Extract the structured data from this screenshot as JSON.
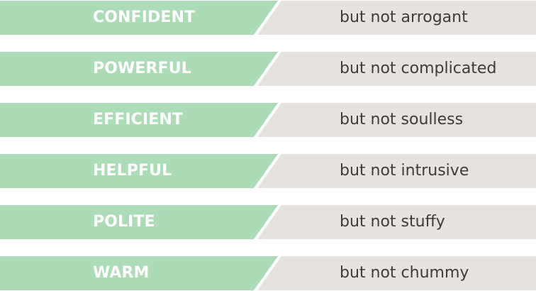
{
  "colors": {
    "trait_band": "#acdcb5",
    "caveat_band": "#e6e2e0",
    "trait_text": "#ffffff",
    "caveat_text": "#3c3c3c"
  },
  "rows": [
    {
      "trait": "CONFIDENT",
      "caveat": "but not arrogant"
    },
    {
      "trait": "POWERFUL",
      "caveat": "but not complicated"
    },
    {
      "trait": "EFFICIENT",
      "caveat": "but not soulless"
    },
    {
      "trait": "HELPFUL",
      "caveat": "but not intrusive"
    },
    {
      "trait": "POLITE",
      "caveat": "but not stuffy"
    },
    {
      "trait": "WARM",
      "caveat": "but not chummy"
    }
  ]
}
